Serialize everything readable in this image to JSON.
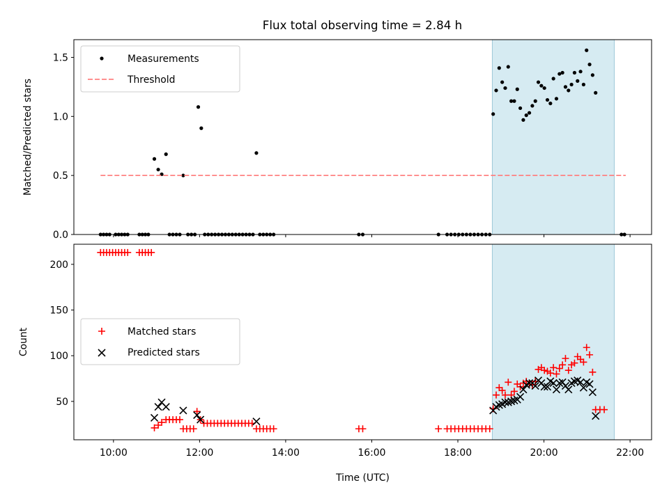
{
  "chart_data": [
    {
      "type": "scatter",
      "title": "Flux total observing time = 2.84 h",
      "xlabel": "",
      "ylabel": "Matched/Predicted stars",
      "x_unit": "hours (UTC)",
      "xlim": [
        9.08,
        22.5
      ],
      "ylim": [
        0,
        1.65
      ],
      "yticks": [
        "0.0",
        "0.5",
        "1.0",
        "1.5"
      ],
      "legend_position": "upper-left",
      "shaded_interval": [
        "18:48",
        "21:38"
      ],
      "shade_color": "#add8e6",
      "series": [
        {
          "name": "Measurements",
          "marker": "dot",
          "color": "#000000",
          "points": [
            [
              9.7,
              0
            ],
            [
              9.77,
              0
            ],
            [
              9.84,
              0
            ],
            [
              9.91,
              0
            ],
            [
              10.05,
              0
            ],
            [
              10.12,
              0
            ],
            [
              10.19,
              0
            ],
            [
              10.26,
              0
            ],
            [
              10.33,
              0
            ],
            [
              10.6,
              0
            ],
            [
              10.67,
              0
            ],
            [
              10.74,
              0
            ],
            [
              10.81,
              0
            ],
            [
              10.95,
              0.64
            ],
            [
              11.04,
              0.55
            ],
            [
              11.12,
              0.51
            ],
            [
              11.22,
              0.68
            ],
            [
              11.3,
              0
            ],
            [
              11.38,
              0
            ],
            [
              11.46,
              0
            ],
            [
              11.54,
              0
            ],
            [
              11.62,
              0.5
            ],
            [
              11.73,
              0
            ],
            [
              11.81,
              0
            ],
            [
              11.89,
              0
            ],
            [
              11.97,
              1.08
            ],
            [
              12.04,
              0.9
            ],
            [
              12.12,
              0
            ],
            [
              12.2,
              0
            ],
            [
              12.28,
              0
            ],
            [
              12.36,
              0
            ],
            [
              12.44,
              0
            ],
            [
              12.52,
              0
            ],
            [
              12.6,
              0
            ],
            [
              12.68,
              0
            ],
            [
              12.76,
              0
            ],
            [
              12.84,
              0
            ],
            [
              12.92,
              0
            ],
            [
              13.0,
              0
            ],
            [
              13.08,
              0
            ],
            [
              13.16,
              0
            ],
            [
              13.24,
              0
            ],
            [
              13.32,
              0.69
            ],
            [
              13.4,
              0
            ],
            [
              13.48,
              0
            ],
            [
              13.56,
              0
            ],
            [
              13.64,
              0
            ],
            [
              13.72,
              0
            ],
            [
              15.7,
              0
            ],
            [
              15.79,
              0
            ],
            [
              17.55,
              0
            ],
            [
              17.75,
              0
            ],
            [
              17.84,
              0
            ],
            [
              17.93,
              0
            ],
            [
              18.02,
              0
            ],
            [
              18.11,
              0
            ],
            [
              18.2,
              0
            ],
            [
              18.29,
              0
            ],
            [
              18.38,
              0
            ],
            [
              18.47,
              0
            ],
            [
              18.56,
              0
            ],
            [
              18.65,
              0
            ],
            [
              18.74,
              0
            ],
            [
              18.82,
              1.02
            ],
            [
              18.89,
              1.22
            ],
            [
              18.96,
              1.41
            ],
            [
              19.03,
              1.29
            ],
            [
              19.1,
              1.24
            ],
            [
              19.17,
              1.42
            ],
            [
              19.24,
              1.13
            ],
            [
              19.31,
              1.13
            ],
            [
              19.38,
              1.23
            ],
            [
              19.45,
              1.07
            ],
            [
              19.52,
              0.97
            ],
            [
              19.59,
              1.01
            ],
            [
              19.66,
              1.03
            ],
            [
              19.73,
              1.09
            ],
            [
              19.8,
              1.13
            ],
            [
              19.87,
              1.29
            ],
            [
              19.94,
              1.26
            ],
            [
              20.01,
              1.24
            ],
            [
              20.08,
              1.14
            ],
            [
              20.15,
              1.11
            ],
            [
              20.22,
              1.32
            ],
            [
              20.29,
              1.15
            ],
            [
              20.36,
              1.36
            ],
            [
              20.43,
              1.37
            ],
            [
              20.5,
              1.25
            ],
            [
              20.57,
              1.22
            ],
            [
              20.64,
              1.27
            ],
            [
              20.71,
              1.37
            ],
            [
              20.78,
              1.3
            ],
            [
              20.85,
              1.38
            ],
            [
              20.92,
              1.27
            ],
            [
              20.99,
              1.56
            ],
            [
              21.06,
              1.44
            ],
            [
              21.13,
              1.35
            ],
            [
              21.2,
              1.2
            ],
            [
              21.8,
              0
            ],
            [
              21.87,
              0
            ]
          ]
        },
        {
          "name": "Threshold",
          "line_style": "dashed",
          "color": "#ff8080",
          "points": [
            [
              9.7,
              0.5
            ],
            [
              21.9,
              0.5
            ]
          ]
        }
      ]
    },
    {
      "type": "scatter",
      "title": "",
      "xlabel": "Time (UTC)",
      "ylabel": "Count",
      "x_unit": "hours (UTC)",
      "xlim": [
        9.08,
        22.5
      ],
      "ylim": [
        8,
        222
      ],
      "yticks": [
        "50",
        "100",
        "150",
        "200"
      ],
      "xticks": [
        "10:00",
        "12:00",
        "14:00",
        "16:00",
        "18:00",
        "20:00",
        "22:00"
      ],
      "legend_position": "center-left",
      "shaded_interval": [
        "18:48",
        "21:38"
      ],
      "shade_color": "#add8e6",
      "series": [
        {
          "name": "Matched stars",
          "marker": "plus",
          "color": "#ff0000",
          "points": [
            [
              9.7,
              213
            ],
            [
              9.77,
              213
            ],
            [
              9.84,
              213
            ],
            [
              9.91,
              213
            ],
            [
              9.98,
              213
            ],
            [
              10.05,
              213
            ],
            [
              10.12,
              213
            ],
            [
              10.19,
              213
            ],
            [
              10.26,
              213
            ],
            [
              10.33,
              213
            ],
            [
              10.6,
              213
            ],
            [
              10.67,
              213
            ],
            [
              10.74,
              213
            ],
            [
              10.81,
              213
            ],
            [
              10.88,
              213
            ],
            [
              10.95,
              21
            ],
            [
              11.04,
              24
            ],
            [
              11.12,
              27
            ],
            [
              11.22,
              30
            ],
            [
              11.3,
              30
            ],
            [
              11.38,
              30
            ],
            [
              11.46,
              30
            ],
            [
              11.54,
              30
            ],
            [
              11.62,
              20
            ],
            [
              11.7,
              20
            ],
            [
              11.78,
              20
            ],
            [
              11.86,
              20
            ],
            [
              11.94,
              39
            ],
            [
              12.02,
              30
            ],
            [
              12.1,
              26
            ],
            [
              12.18,
              26
            ],
            [
              12.26,
              26
            ],
            [
              12.34,
              26
            ],
            [
              12.42,
              26
            ],
            [
              12.5,
              26
            ],
            [
              12.58,
              26
            ],
            [
              12.66,
              26
            ],
            [
              12.74,
              26
            ],
            [
              12.82,
              26
            ],
            [
              12.9,
              26
            ],
            [
              12.98,
              26
            ],
            [
              13.06,
              26
            ],
            [
              13.14,
              26
            ],
            [
              13.22,
              26
            ],
            [
              13.32,
              20
            ],
            [
              13.4,
              20
            ],
            [
              13.48,
              20
            ],
            [
              13.56,
              20
            ],
            [
              13.64,
              20
            ],
            [
              13.72,
              20
            ],
            [
              15.7,
              20
            ],
            [
              15.79,
              20
            ],
            [
              17.55,
              20
            ],
            [
              17.75,
              20
            ],
            [
              17.84,
              20
            ],
            [
              17.93,
              20
            ],
            [
              18.02,
              20
            ],
            [
              18.11,
              20
            ],
            [
              18.2,
              20
            ],
            [
              18.29,
              20
            ],
            [
              18.38,
              20
            ],
            [
              18.47,
              20
            ],
            [
              18.56,
              20
            ],
            [
              18.65,
              20
            ],
            [
              18.74,
              20
            ],
            [
              18.82,
              42
            ],
            [
              18.89,
              57
            ],
            [
              18.96,
              65
            ],
            [
              19.03,
              62
            ],
            [
              19.1,
              57
            ],
            [
              19.17,
              71
            ],
            [
              19.24,
              57
            ],
            [
              19.31,
              61
            ],
            [
              19.38,
              69
            ],
            [
              19.45,
              66
            ],
            [
              19.52,
              70
            ],
            [
              19.59,
              72
            ],
            [
              19.66,
              69
            ],
            [
              19.73,
              68
            ],
            [
              19.8,
              72
            ],
            [
              19.87,
              85
            ],
            [
              19.94,
              87
            ],
            [
              20.01,
              84
            ],
            [
              20.08,
              83
            ],
            [
              20.15,
              81
            ],
            [
              20.22,
              87
            ],
            [
              20.29,
              80
            ],
            [
              20.36,
              86
            ],
            [
              20.43,
              90
            ],
            [
              20.5,
              97
            ],
            [
              20.57,
              84
            ],
            [
              20.64,
              90
            ],
            [
              20.71,
              92
            ],
            [
              20.78,
              99
            ],
            [
              20.85,
              96
            ],
            [
              20.92,
              93
            ],
            [
              20.99,
              109
            ],
            [
              21.06,
              101
            ],
            [
              21.13,
              82
            ],
            [
              21.2,
              41
            ],
            [
              21.3,
              41
            ],
            [
              21.4,
              41
            ]
          ]
        },
        {
          "name": "Predicted stars",
          "marker": "x",
          "color": "#000000",
          "points": [
            [
              10.95,
              32
            ],
            [
              11.04,
              44
            ],
            [
              11.12,
              49
            ],
            [
              11.22,
              44
            ],
            [
              11.62,
              40
            ],
            [
              11.94,
              35
            ],
            [
              12.02,
              30
            ],
            [
              13.32,
              28
            ],
            [
              18.82,
              40
            ],
            [
              18.89,
              44
            ],
            [
              18.96,
              46
            ],
            [
              19.03,
              47
            ],
            [
              19.1,
              49
            ],
            [
              19.17,
              49
            ],
            [
              19.24,
              50
            ],
            [
              19.31,
              51
            ],
            [
              19.38,
              52
            ],
            [
              19.45,
              55
            ],
            [
              19.52,
              63
            ],
            [
              19.59,
              68
            ],
            [
              19.66,
              70
            ],
            [
              19.73,
              70
            ],
            [
              19.8,
              67
            ],
            [
              19.87,
              73
            ],
            [
              19.94,
              70
            ],
            [
              20.01,
              66
            ],
            [
              20.08,
              66
            ],
            [
              20.15,
              72
            ],
            [
              20.22,
              70
            ],
            [
              20.29,
              63
            ],
            [
              20.36,
              70
            ],
            [
              20.43,
              71
            ],
            [
              20.5,
              67
            ],
            [
              20.57,
              63
            ],
            [
              20.64,
              70
            ],
            [
              20.71,
              72
            ],
            [
              20.78,
              73
            ],
            [
              20.85,
              71
            ],
            [
              20.92,
              65
            ],
            [
              20.99,
              71
            ],
            [
              21.06,
              69
            ],
            [
              21.13,
              60
            ],
            [
              21.2,
              34
            ]
          ]
        }
      ]
    }
  ]
}
